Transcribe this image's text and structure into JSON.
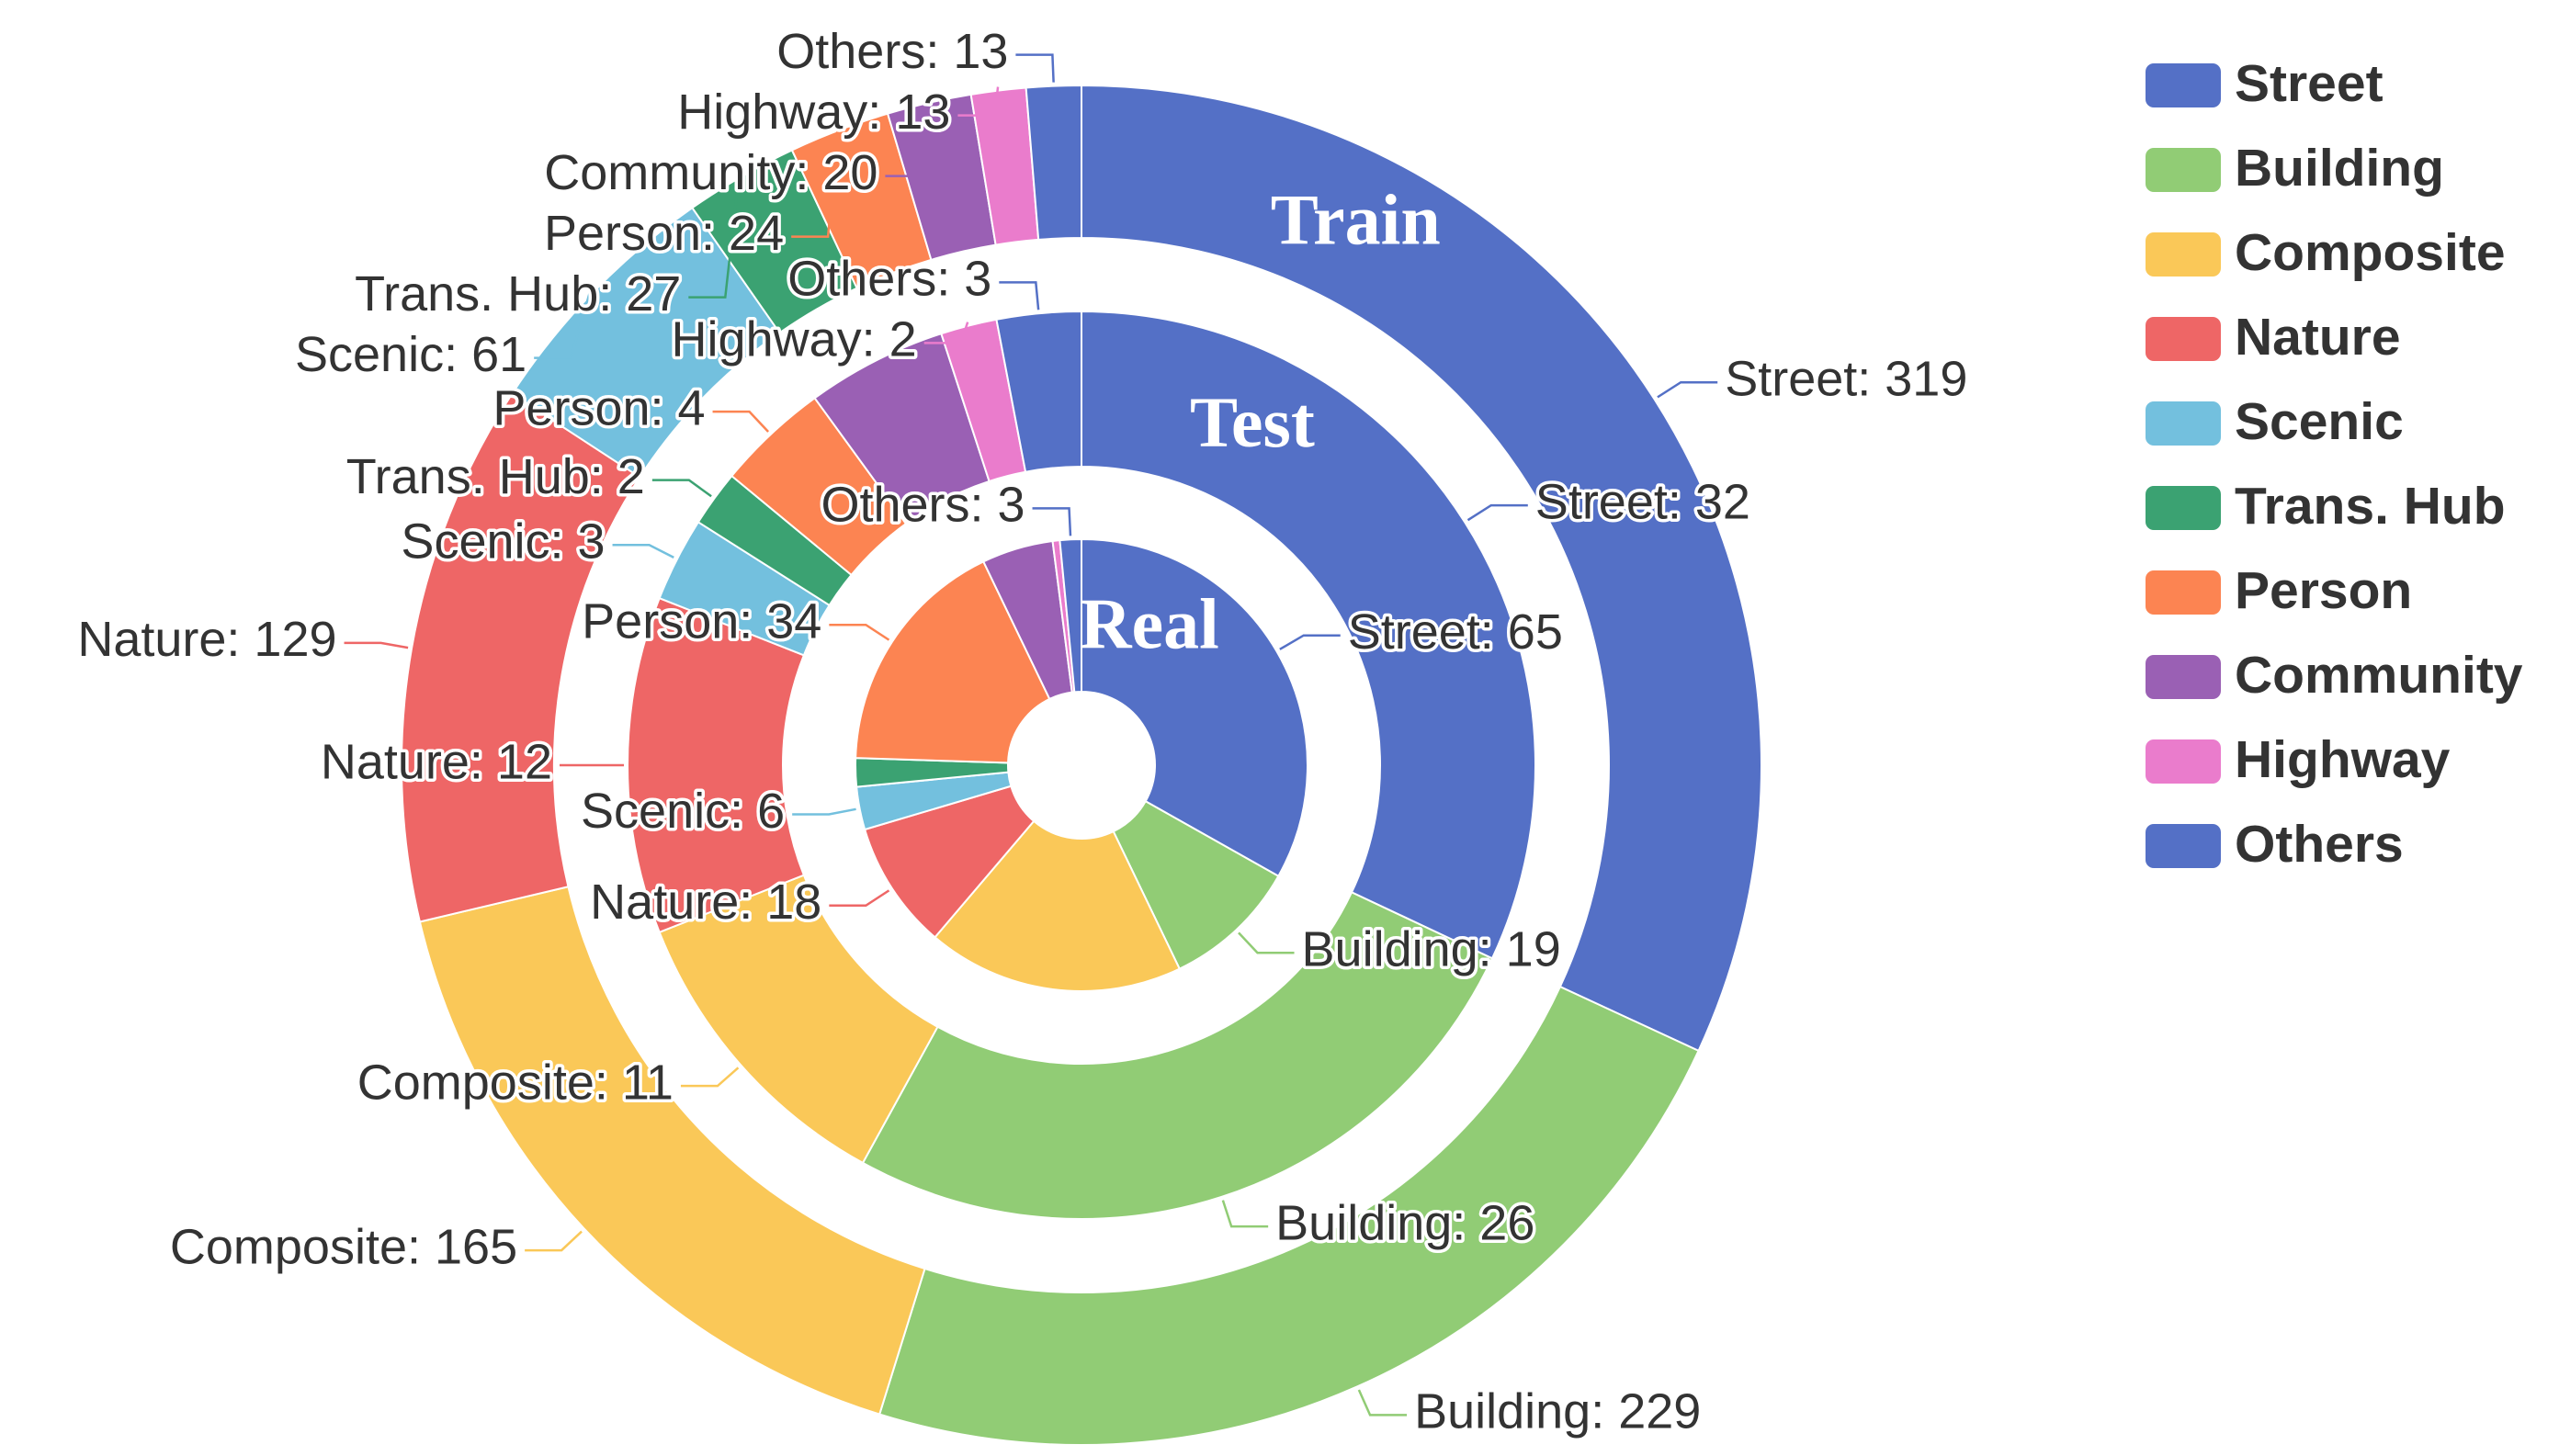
{
  "chart_data": {
    "type": "nested-donut",
    "categories": [
      "Street",
      "Building",
      "Composite",
      "Nature",
      "Scenic",
      "Trans. Hub",
      "Person",
      "Community",
      "Highway",
      "Others"
    ],
    "colors": [
      "#5470c6",
      "#91cc75",
      "#fac858",
      "#ee6666",
      "#73c0de",
      "#3ba272",
      "#fc8452",
      "#9a60b4",
      "#ea7ccc",
      "#5470c6"
    ],
    "legend": "top-right",
    "series": [
      {
        "name": "Real",
        "values": [
          65,
          19,
          36,
          18,
          6,
          4,
          34,
          10,
          1,
          3
        ],
        "value_labels": [
          "Street: 65",
          "Building: 19",
          null,
          "Nature: 18",
          "Scenic: 6",
          null,
          "Person: 34",
          null,
          null,
          "Others: 3"
        ]
      },
      {
        "name": "Test",
        "values": [
          32,
          26,
          11,
          12,
          3,
          2,
          4,
          5,
          2,
          3
        ],
        "value_labels": [
          "Street: 32",
          "Building: 26",
          "Composite: 11",
          "Nature: 12",
          "Scenic: 3",
          "Trans. Hub: 2",
          "Person: 4",
          null,
          "Highway: 2",
          "Others: 3"
        ]
      },
      {
        "name": "Train",
        "values": [
          319,
          229,
          165,
          129,
          61,
          27,
          24,
          20,
          13,
          13
        ],
        "value_labels": [
          "Street: 319",
          "Building: 229",
          "Composite: 165",
          "Nature: 129",
          "Scenic: 61",
          "Trans. Hub: 27",
          "Person: 24",
          "Community: 20",
          "Highway: 13",
          "Others: 13"
        ]
      }
    ]
  }
}
